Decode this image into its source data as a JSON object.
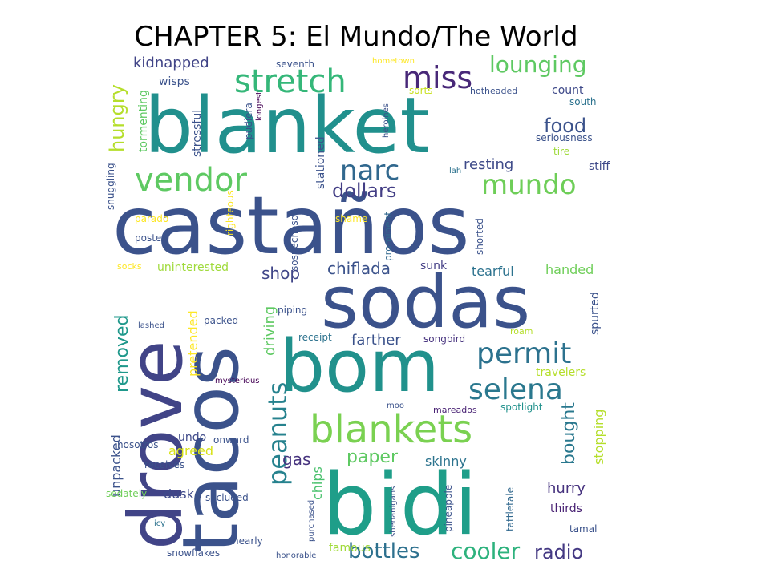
{
  "title": "CHAPTER 5: El Mundo/The World",
  "words": [
    {
      "text": "castaños",
      "color": "#3b528b"
    },
    {
      "text": "blanket",
      "color": "#21908d"
    },
    {
      "text": "sodas",
      "color": "#3b528b"
    },
    {
      "text": "bidi",
      "color": "#1f9e89"
    },
    {
      "text": "bom",
      "color": "#21918c"
    },
    {
      "text": "tacos",
      "color": "#3b528b"
    },
    {
      "text": "drove",
      "color": "#414487"
    },
    {
      "text": "vendor",
      "color": "#5ec962"
    },
    {
      "text": "blankets",
      "color": "#7ad151"
    },
    {
      "text": "stretch",
      "color": "#35b779"
    },
    {
      "text": "miss",
      "color": "#482878"
    },
    {
      "text": "permit",
      "color": "#2c728e"
    },
    {
      "text": "selena",
      "color": "#2a788e"
    },
    {
      "text": "narc",
      "color": "#31688e"
    },
    {
      "text": "mundo",
      "color": "#6ece58"
    },
    {
      "text": "peanuts",
      "color": "#26828e"
    },
    {
      "text": "lounging",
      "color": "#5ec962"
    },
    {
      "text": "food",
      "color": "#3b528b"
    },
    {
      "text": "dollars",
      "color": "#433e85"
    },
    {
      "text": "bottles",
      "color": "#2d708e"
    },
    {
      "text": "cooler",
      "color": "#2db27d"
    },
    {
      "text": "radio",
      "color": "#443983"
    },
    {
      "text": "hungry",
      "color": "#b5de2b"
    },
    {
      "text": "removed",
      "color": "#1f988b"
    },
    {
      "text": "bought",
      "color": "#2a788e"
    },
    {
      "text": "paper",
      "color": "#5ec962"
    },
    {
      "text": "gas",
      "color": "#46337e"
    },
    {
      "text": "shop",
      "color": "#404688"
    },
    {
      "text": "chiflada",
      "color": "#3b528b"
    },
    {
      "text": "driving",
      "color": "#5ec962"
    },
    {
      "text": "farther",
      "color": "#3b528b"
    },
    {
      "text": "kidnapped",
      "color": "#414487"
    },
    {
      "text": "resting",
      "color": "#3e4a89"
    },
    {
      "text": "stopping",
      "color": "#b5de2b"
    },
    {
      "text": "skinny",
      "color": "#2c738e"
    },
    {
      "text": "chips",
      "color": "#4ac16d"
    },
    {
      "text": "hurry",
      "color": "#46327e"
    },
    {
      "text": "pretended",
      "color": "#fde725"
    },
    {
      "text": "agreed",
      "color": "#d8e219"
    },
    {
      "text": "handed",
      "color": "#6ece58"
    },
    {
      "text": "unpacked",
      "color": "#3b528b"
    },
    {
      "text": "dusk",
      "color": "#3e4989"
    },
    {
      "text": "famous",
      "color": "#a0da39"
    },
    {
      "text": "tearful",
      "color": "#2c728e"
    },
    {
      "text": "uninterested",
      "color": "#9fda3a"
    },
    {
      "text": "travelers",
      "color": "#b5de2b"
    },
    {
      "text": "wisps",
      "color": "#3b528b"
    },
    {
      "text": "count",
      "color": "#3e4989"
    },
    {
      "text": "tormenting",
      "color": "#5ec962"
    },
    {
      "text": "stressful",
      "color": "#3b528b"
    },
    {
      "text": "stationed",
      "color": "#3b528b"
    },
    {
      "text": "spurted",
      "color": "#3b528b"
    },
    {
      "text": "thirds",
      "color": "#482173"
    },
    {
      "text": "tamal",
      "color": "#3b528b"
    },
    {
      "text": "sunk",
      "color": "#433e85"
    },
    {
      "text": "spotlight",
      "color": "#21918c"
    },
    {
      "text": "tattletale",
      "color": "#31688e"
    },
    {
      "text": "stiff",
      "color": "#3e4989"
    },
    {
      "text": "tire",
      "color": "#9fda3a"
    },
    {
      "text": "south",
      "color": "#2c728e"
    },
    {
      "text": "seriousness",
      "color": "#3b528b"
    },
    {
      "text": "seventh",
      "color": "#3b528b"
    },
    {
      "text": "hometown",
      "color": "#fde725"
    },
    {
      "text": "sorts",
      "color": "#c8e020"
    },
    {
      "text": "hotheaded",
      "color": "#3b528b"
    },
    {
      "text": "heroines",
      "color": "#3b528b"
    },
    {
      "text": "longest",
      "color": "#440154"
    },
    {
      "text": "pudiera",
      "color": "#3b528b"
    },
    {
      "text": "snuggling",
      "color": "#3b528b"
    },
    {
      "text": "lah",
      "color": "#2c728e"
    },
    {
      "text": "righteous",
      "color": "#fde725"
    },
    {
      "text": "sospechosos",
      "color": "#3b528b"
    },
    {
      "text": "prominent",
      "color": "#31688e"
    },
    {
      "text": "shorted",
      "color": "#3b528b"
    },
    {
      "text": "parado",
      "color": "#fde725"
    },
    {
      "text": "shame",
      "color": "#fde725"
    },
    {
      "text": "posted",
      "color": "#3b528b"
    },
    {
      "text": "socks",
      "color": "#fde725"
    },
    {
      "text": "piping",
      "color": "#3b528b"
    },
    {
      "text": "packed",
      "color": "#3b528b"
    },
    {
      "text": "lashed",
      "color": "#3b528b"
    },
    {
      "text": "receipt",
      "color": "#2c728e"
    },
    {
      "text": "songbird",
      "color": "#46327e"
    },
    {
      "text": "roam",
      "color": "#b5de2b"
    },
    {
      "text": "mysterious",
      "color": "#440154"
    },
    {
      "text": "moo",
      "color": "#3b528b"
    },
    {
      "text": "mareados",
      "color": "#482173"
    },
    {
      "text": "nosotros",
      "color": "#3b528b"
    },
    {
      "text": "undo",
      "color": "#3e4989"
    },
    {
      "text": "onward",
      "color": "#3b528b"
    },
    {
      "text": "receives",
      "color": "#3b528b"
    },
    {
      "text": "sedately",
      "color": "#6ece58"
    },
    {
      "text": "secluded",
      "color": "#3b528b"
    },
    {
      "text": "purchased",
      "color": "#3b528b"
    },
    {
      "text": "shenanigans",
      "color": "#3b528b"
    },
    {
      "text": "pineapple",
      "color": "#3b528b"
    },
    {
      "text": "icy",
      "color": "#2c728e"
    },
    {
      "text": "nearly",
      "color": "#3b528b"
    },
    {
      "text": "snowflakes",
      "color": "#3b528b"
    },
    {
      "text": "honorable",
      "color": "#3b528b"
    }
  ]
}
